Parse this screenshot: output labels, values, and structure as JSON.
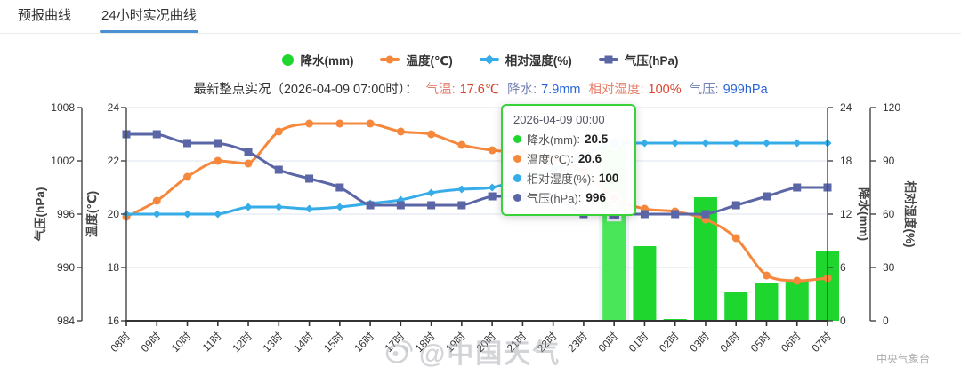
{
  "tabs": [
    {
      "label": "预报曲线",
      "active": false
    },
    {
      "label": "24小时实况曲线",
      "active": true
    }
  ],
  "colors": {
    "tab_active_underline": "#4a90d2",
    "precip": "#1ed62e",
    "temperature": "#f6883d",
    "humidity": "#36ace8",
    "pressure": "#5a66a6",
    "tooltip_border": "#3ad23a",
    "status_red_label": "#e4826f",
    "status_red_value": "#d8432f",
    "status_blue_label": "#7583b4",
    "status_blue_value": "#2a64d9"
  },
  "legend": [
    {
      "label": "降水(mm)",
      "color": "#1ed62e",
      "marker": "circle"
    },
    {
      "label": "温度(℃)",
      "color": "#f6883d",
      "marker": "line-circle"
    },
    {
      "label": "相对湿度(%)",
      "color": "#36ace8",
      "marker": "line-diamond"
    },
    {
      "label": "气压(hPa)",
      "color": "#5a66a6",
      "marker": "line-square"
    }
  ],
  "status": {
    "prefix": "最新整点实况（2026-04-09 07:00时）：",
    "items": [
      {
        "label": "气温:",
        "value": "17.6℃",
        "label_color": "#e4826f",
        "value_color": "#d8432f"
      },
      {
        "label": "降水:",
        "value": "7.9mm",
        "label_color": "#7583b4",
        "value_color": "#2a64d9"
      },
      {
        "label": "相对湿度:",
        "value": "100%",
        "label_color": "#e4826f",
        "value_color": "#d8432f"
      },
      {
        "label": "气压:",
        "value": "999hPa",
        "label_color": "#7583b4",
        "value_color": "#2a64d9"
      }
    ]
  },
  "tooltip": {
    "title": "2026-04-09 00:00",
    "rows": [
      {
        "label": "降水(mm)",
        "value": "20.5",
        "color": "#1ed62e"
      },
      {
        "label": "温度(℃)",
        "value": "20.6",
        "color": "#f6883d"
      },
      {
        "label": "相对湿度(%)",
        "value": "100",
        "color": "#36ace8"
      },
      {
        "label": "气压(hPa)",
        "value": "996",
        "color": "#5a66a6"
      }
    ]
  },
  "watermark": {
    "text": "@中国天气",
    "icon": "weibo-icon"
  },
  "source": "中央气象台",
  "chart_data": {
    "type": "mixed",
    "categories": [
      "08时",
      "09时",
      "10时",
      "11时",
      "12时",
      "13时",
      "14时",
      "15时",
      "16时",
      "17时",
      "18时",
      "19时",
      "20时",
      "21时",
      "22时",
      "23时",
      "00时",
      "01时",
      "02时",
      "03时",
      "04时",
      "05时",
      "06时",
      "07时"
    ],
    "highlight_index": 16,
    "highlight_band_color": "#edf0f6",
    "highlight_bar_color": "#4ae65a",
    "gridline_color": "#dde5ef",
    "axes": {
      "pressure": {
        "name": "气压(hPa)",
        "min": 984,
        "max": 1008,
        "ticks": [
          984,
          990,
          996,
          1002,
          1008
        ],
        "position": "left-outer"
      },
      "temp": {
        "name": "温度(℃)",
        "min": 16,
        "max": 24,
        "ticks": [
          16,
          18,
          20,
          22,
          24
        ],
        "position": "left-inner"
      },
      "precip": {
        "name": "降水(mm)",
        "min": 0,
        "max": 24,
        "ticks": [
          0,
          6,
          12,
          18,
          24
        ],
        "position": "right-inner"
      },
      "humidity": {
        "name": "相对湿度(%)",
        "min": 0,
        "max": 120,
        "ticks": [
          0,
          30,
          60,
          90,
          120
        ],
        "position": "right-outer"
      }
    },
    "series": [
      {
        "name": "降水(mm)",
        "type": "bar",
        "axis": "precip",
        "color": "#1ed62e",
        "values": [
          0,
          0,
          0,
          0,
          0,
          0,
          0,
          0,
          0,
          0,
          0,
          0,
          0,
          0,
          0,
          0,
          20.5,
          8.4,
          0.2,
          13.9,
          3.2,
          4.3,
          4.6,
          7.9
        ]
      },
      {
        "name": "温度(℃)",
        "type": "line",
        "axis": "temp",
        "color": "#f6883d",
        "marker": "circle",
        "values": [
          19.9,
          20.5,
          21.4,
          22.0,
          21.9,
          23.1,
          23.4,
          23.4,
          23.4,
          23.1,
          23.0,
          22.6,
          22.4,
          22.3,
          22.1,
          21.6,
          20.6,
          20.2,
          20.1,
          19.8,
          19.1,
          17.7,
          17.5,
          17.6
        ]
      },
      {
        "name": "相对湿度(%)",
        "type": "line",
        "axis": "humidity",
        "color": "#36ace8",
        "marker": "diamond",
        "values": [
          60,
          60,
          60,
          60,
          64,
          64,
          63,
          64,
          66,
          68,
          72,
          74,
          75,
          80,
          85,
          93,
          100,
          100,
          100,
          100,
          100,
          100,
          100,
          100
        ]
      },
      {
        "name": "气压(hPa)",
        "type": "line",
        "axis": "pressure",
        "color": "#5a66a6",
        "marker": "square",
        "values": [
          1005,
          1005,
          1004,
          1004,
          1003,
          1001,
          1000,
          999,
          997,
          997,
          997,
          997,
          998,
          998,
          998,
          996,
          996,
          996,
          996,
          996,
          997,
          998,
          999,
          999
        ]
      }
    ],
    "grid": true,
    "legend_position": "top-center"
  }
}
